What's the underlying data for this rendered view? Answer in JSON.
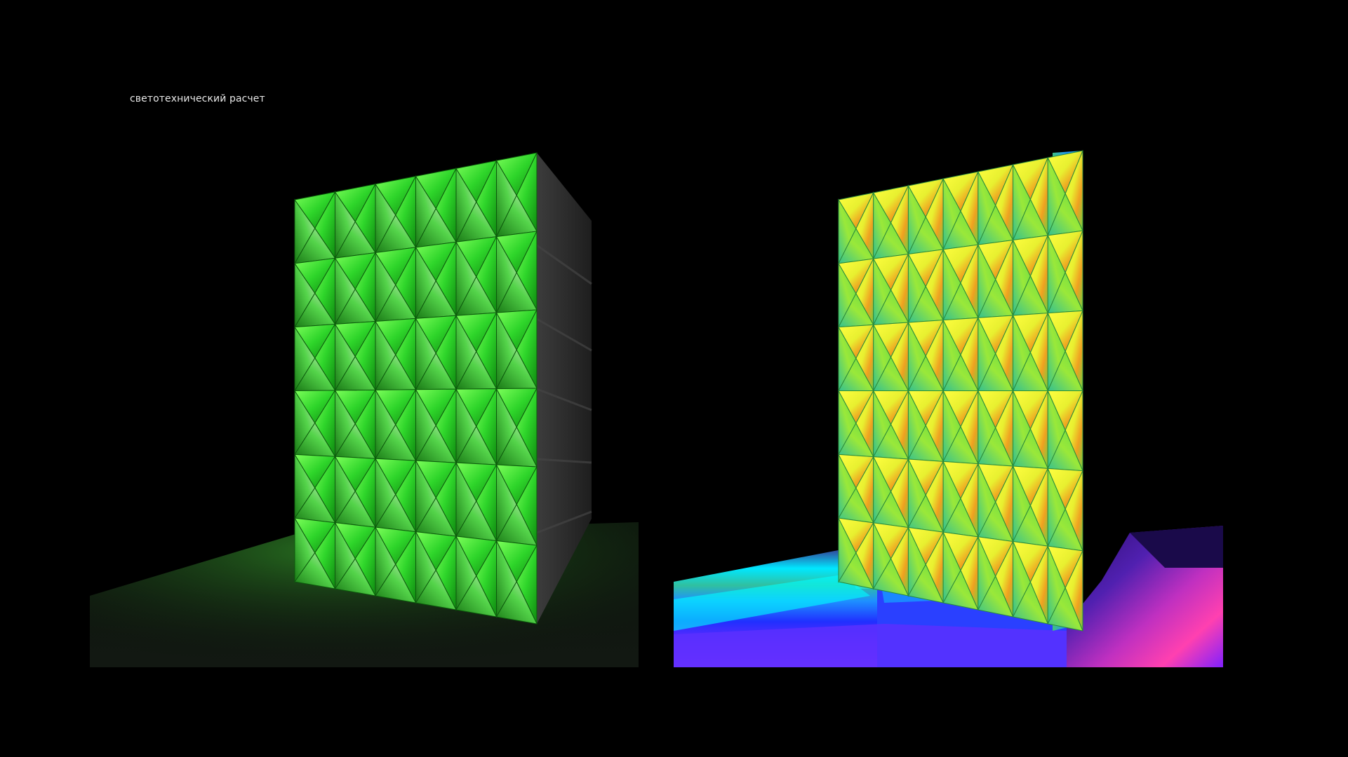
{
  "caption": "светотехнический расчет",
  "panels": {
    "left": {
      "render": "illuminated-facade",
      "accent": "#35e02e"
    },
    "right": {
      "render": "false-color-luminance-analysis",
      "palette": [
        "#ffff33",
        "#f0a020",
        "#7fe040",
        "#33c090",
        "#1f8fff",
        "#2020ff",
        "#8a20ff",
        "#ff30c0",
        "#00ffff"
      ]
    }
  }
}
